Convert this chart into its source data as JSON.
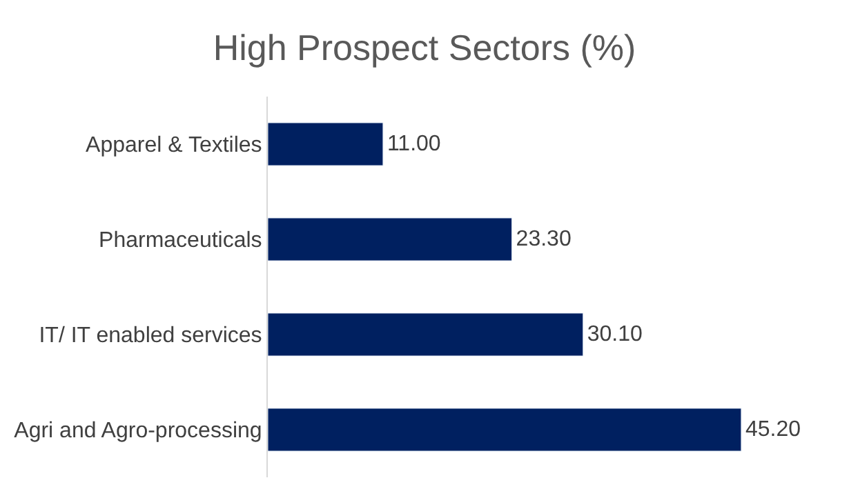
{
  "chart_data": {
    "type": "bar",
    "title": "High Prospect Sectors (%)",
    "orientation": "horizontal",
    "categories": [
      "Apparel & Textiles",
      "Pharmaceuticals",
      "IT/ IT enabled services",
      "Agri and Agro-processing"
    ],
    "values": [
      11.0,
      23.3,
      30.1,
      45.2
    ],
    "value_labels": [
      "11.00",
      "23.30",
      "30.10",
      "45.20"
    ],
    "color": "#002060"
  }
}
